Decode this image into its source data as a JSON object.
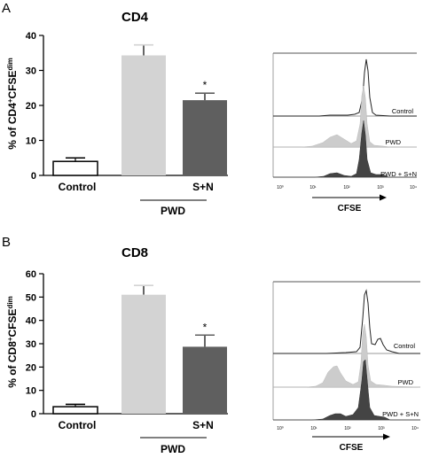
{
  "panels": [
    {
      "letter": "A",
      "bar": {
        "title": "CD4",
        "ylabel_pre": "% of CD4",
        "ylabel_sup1": "+",
        "ylabel_mid": "CFSE",
        "ylabel_sup2": "dim",
        "ylim": [
          0,
          40
        ],
        "yticks": [
          "0",
          "10",
          "20",
          "30",
          "40"
        ],
        "categories": [
          {
            "label": "Control",
            "value": 4.0,
            "error": 1.0,
            "fill": "#ffffff",
            "annotation": ""
          },
          {
            "label": "",
            "value": 34.3,
            "error": 3.0,
            "fill": "#d3d3d3",
            "annotation": ""
          },
          {
            "label": "S+N",
            "value": 21.5,
            "error": 2.0,
            "fill": "#5f5f5f",
            "annotation": "*"
          }
        ],
        "group_label": "PWD"
      },
      "hist": {
        "xaxis_label": "CFSE",
        "xticks": [
          "10⁰",
          "10¹",
          "10²",
          "10³",
          "10⁴"
        ],
        "rows": [
          {
            "label": "Control",
            "fill": "none"
          },
          {
            "label": "PWD",
            "fill": "#cccccc"
          },
          {
            "label": "PWD + S+N",
            "fill": "#444444"
          }
        ]
      }
    },
    {
      "letter": "B",
      "bar": {
        "title": "CD8",
        "ylabel_pre": "% of CD8",
        "ylabel_sup1": "+",
        "ylabel_mid": "CFSE",
        "ylabel_sup2": "dim",
        "ylim": [
          0,
          60
        ],
        "yticks": [
          "0",
          "10",
          "20",
          "30",
          "40",
          "50",
          "60"
        ],
        "categories": [
          {
            "label": "Control",
            "value": 3.0,
            "error": 1.0,
            "fill": "#ffffff",
            "annotation": ""
          },
          {
            "label": "",
            "value": 51.0,
            "error": 4.0,
            "fill": "#d3d3d3",
            "annotation": ""
          },
          {
            "label": "S+N",
            "value": 28.7,
            "error": 5.0,
            "fill": "#5f5f5f",
            "annotation": "*"
          }
        ],
        "group_label": "PWD"
      },
      "hist": {
        "xaxis_label": "CFSE",
        "xticks": [
          "10⁰",
          "10¹",
          "10²",
          "10³",
          "10⁴"
        ],
        "rows": [
          {
            "label": "Control",
            "fill": "none"
          },
          {
            "label": "PWD",
            "fill": "#cccccc"
          },
          {
            "label": "PWD + S+N",
            "fill": "#444444"
          }
        ]
      }
    }
  ],
  "chart_data": [
    {
      "type": "bar",
      "title": "CD4",
      "ylabel": "% of CD4+CFSEdim",
      "categories": [
        "Control",
        "PWD",
        "PWD + S+N"
      ],
      "values": [
        4.0,
        34.3,
        21.5
      ],
      "errors": [
        1.0,
        3.0,
        2.0
      ],
      "ylim": [
        0,
        40
      ],
      "annotations": [
        "",
        "",
        "*"
      ]
    },
    {
      "type": "bar",
      "title": "CD8",
      "ylabel": "% of CD8+CFSEdim",
      "categories": [
        "Control",
        "PWD",
        "PWD + S+N"
      ],
      "values": [
        3.0,
        51.0,
        28.7
      ],
      "errors": [
        1.0,
        4.0,
        5.0
      ],
      "ylim": [
        0,
        60
      ],
      "annotations": [
        "",
        "",
        "*"
      ]
    }
  ]
}
